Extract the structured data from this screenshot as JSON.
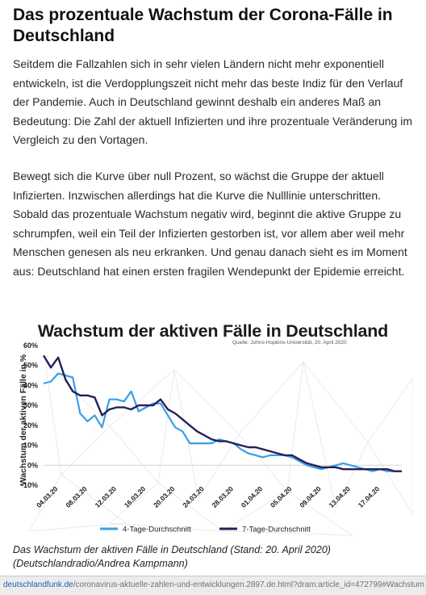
{
  "article": {
    "title": "Das prozentuale Wachstum der Corona-Fälle in Deutschland",
    "paragraphs": [
      "Seitdem die Fallzahlen sich in sehr vielen Ländern nicht mehr exponentiell entwickeln, ist die Verdopplungszeit nicht mehr das beste Indiz für den Verlauf der Pandemie. Auch in Deutschland gewinnt deshalb ein anderes Maß an Bedeutung: Die Zahl der aktuell Infizierten und ihre prozentuale Veränderung im Vergleich zu den Vortagen.",
      "Bewegt sich die Kurve über null Prozent, so wächst die Gruppe der aktuell Infizierten. Inzwischen allerdings hat die Kurve die Nulllinie unterschritten. Sobald das prozentuale Wachstum negativ wird, beginnt die aktive Gruppe zu schrumpfen, weil ein Teil der Infizierten gestorben ist, vor allem aber weil mehr Menschen genesen als neu erkranken. Und genau danach sieht es im Moment aus: Deutschland hat einen ersten fragilen Wendepunkt der Epidemie erreicht."
    ],
    "caption": "Das Wachstum der aktiven Fälle in Deutschland (Stand: 20. April 2020) (Deutschlandradio/Andrea Kampmann)"
  },
  "status_bar": {
    "domain": "deutschlandfunk.de",
    "path": "/coronavirus-aktuelle-zahlen-und-entwicklungen.2897.de.html?dram:article_id=472799#Wachstum"
  },
  "colors": {
    "series_4day": "#3a9ee8",
    "series_7day": "#25205a",
    "zero_line": "#d3d3d3",
    "background_triangles": "#e6e6e6"
  },
  "chart_data": {
    "type": "line",
    "title": "Wachstum der aktiven Fälle in Deutschland",
    "subtitle": "Quelle: Johns-Hopkins-Universität, 20. April 2020",
    "ylabel": "Wachstum der aktiven Fälle in %",
    "xlabel": "",
    "ylim": [
      -10,
      60
    ],
    "yticks": [
      "60%",
      "50%",
      "40%",
      "30%",
      "20%",
      "10%",
      "0%",
      "-10%"
    ],
    "xticks": [
      "04.03.20",
      "08.03.20",
      "12.03.20",
      "16.03.20",
      "20.03.20",
      "24.03.20",
      "28.03.20",
      "01.04.20",
      "05.04.20",
      "09.04.20",
      "13.04.20",
      "17.04.20"
    ],
    "legend_position": "bottom",
    "grid": false,
    "x": [
      "02.03.20",
      "03.03.20",
      "04.03.20",
      "05.03.20",
      "06.03.20",
      "07.03.20",
      "08.03.20",
      "09.03.20",
      "10.03.20",
      "11.03.20",
      "12.03.20",
      "13.03.20",
      "14.03.20",
      "15.03.20",
      "16.03.20",
      "17.03.20",
      "18.03.20",
      "19.03.20",
      "20.03.20",
      "21.03.20",
      "22.03.20",
      "23.03.20",
      "24.03.20",
      "25.03.20",
      "26.03.20",
      "27.03.20",
      "28.03.20",
      "29.03.20",
      "30.03.20",
      "31.03.20",
      "01.04.20",
      "02.04.20",
      "03.04.20",
      "04.04.20",
      "05.04.20",
      "06.04.20",
      "07.04.20",
      "08.04.20",
      "09.04.20",
      "10.04.20",
      "11.04.20",
      "12.04.20",
      "13.04.20",
      "14.04.20",
      "15.04.20",
      "16.04.20",
      "17.04.20",
      "18.04.20",
      "19.04.20",
      "20.04.20"
    ],
    "series": [
      {
        "name": "4-Tage-Durchschnitt",
        "values": [
          41,
          42,
          46,
          45,
          44,
          26,
          22,
          25,
          19,
          33,
          33,
          32,
          37,
          27,
          29,
          31,
          31,
          25,
          19,
          17,
          11,
          11,
          11,
          11,
          13,
          12,
          11,
          8,
          6,
          5,
          4,
          5,
          5,
          5,
          4,
          2,
          0,
          -1,
          -2,
          -1,
          0,
          1,
          0,
          -1,
          -2,
          -3,
          -2,
          -3,
          -3,
          -3
        ]
      },
      {
        "name": "7-Tage-Durchschnitt",
        "values": [
          55,
          49,
          54,
          43,
          37,
          35,
          35,
          34,
          25,
          28,
          29,
          29,
          28,
          30,
          30,
          30,
          33,
          28,
          26,
          23,
          20,
          17,
          15,
          13,
          12,
          12,
          11,
          10,
          9,
          9,
          8,
          7,
          6,
          5,
          5,
          3,
          1,
          0,
          -1,
          -1,
          -1,
          -2,
          -2,
          -2,
          -2,
          -2,
          -2,
          -2,
          -3,
          -3
        ]
      }
    ]
  }
}
